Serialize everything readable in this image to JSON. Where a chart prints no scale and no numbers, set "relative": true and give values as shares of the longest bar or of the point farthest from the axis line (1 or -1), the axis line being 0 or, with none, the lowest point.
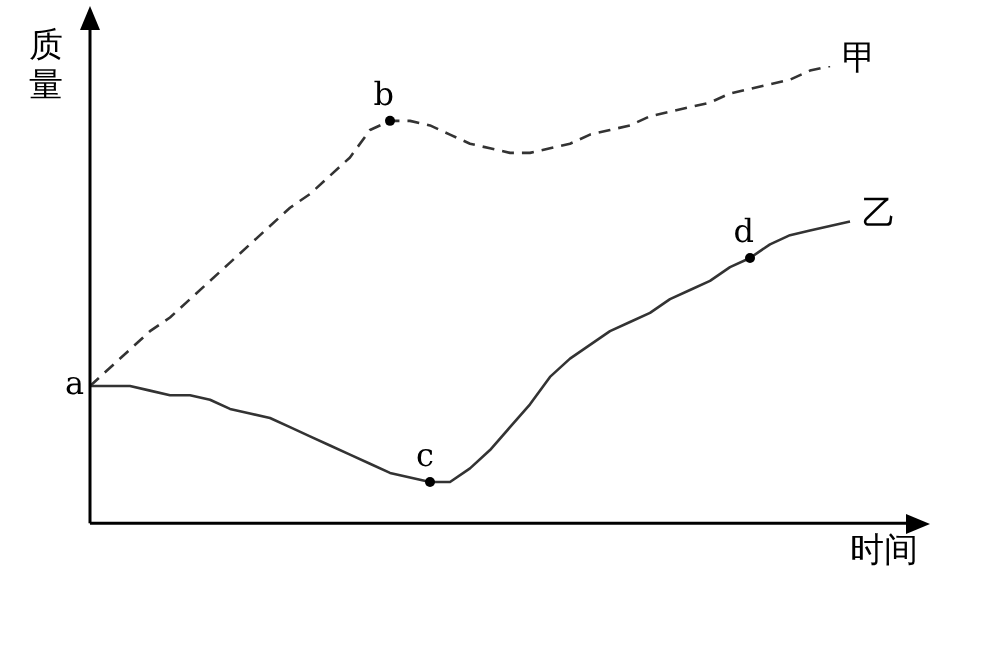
{
  "chart_data": {
    "type": "line",
    "relative": true,
    "xlabel": "时间",
    "ylabel": "质量",
    "categories": [
      null,
      null,
      null,
      null,
      null,
      null,
      null,
      null,
      null,
      null,
      null,
      null,
      null,
      null,
      null,
      null,
      null,
      null,
      null,
      null,
      null,
      null,
      null,
      null,
      null,
      null,
      null,
      null,
      null,
      null,
      null,
      null,
      null,
      null,
      null,
      null,
      null,
      null,
      null
    ],
    "series": [
      {
        "name": "甲",
        "color": "#333333",
        "line_style": "dashed",
        "values": [
          0.3,
          0.34,
          0.38,
          0.42,
          0.45,
          0.49,
          0.53,
          0.57,
          0.61,
          0.65,
          0.69,
          0.72,
          0.76,
          0.8,
          0.86,
          0.88,
          0.88,
          0.87,
          0.85,
          0.83,
          0.82,
          0.81,
          0.81,
          0.82,
          0.83,
          0.85,
          0.86,
          0.87,
          0.89,
          0.9,
          0.91,
          0.92,
          0.94,
          0.95,
          0.96,
          0.97,
          0.99,
          1.0,
          null
        ]
      },
      {
        "name": "乙",
        "color": "#333333",
        "line_style": "solid",
        "values": [
          0.3,
          0.3,
          0.3,
          0.29,
          0.28,
          0.28,
          0.27,
          0.25,
          0.24,
          0.23,
          0.21,
          0.19,
          0.17,
          0.15,
          0.13,
          0.11,
          0.1,
          0.09,
          0.09,
          0.12,
          0.16,
          0.21,
          0.26,
          0.32,
          0.36,
          0.39,
          0.42,
          0.44,
          0.46,
          0.49,
          0.51,
          0.53,
          0.56,
          0.58,
          0.61,
          0.63,
          0.64,
          0.65,
          0.66
        ]
      }
    ],
    "annotations": [
      "a",
      {
        "text": "b",
        "y": 0.88
      },
      {
        "text": "c",
        "y": 0.09
      },
      {
        "text": "d",
        "y": 0.58
      }
    ],
    "legend": false
  }
}
